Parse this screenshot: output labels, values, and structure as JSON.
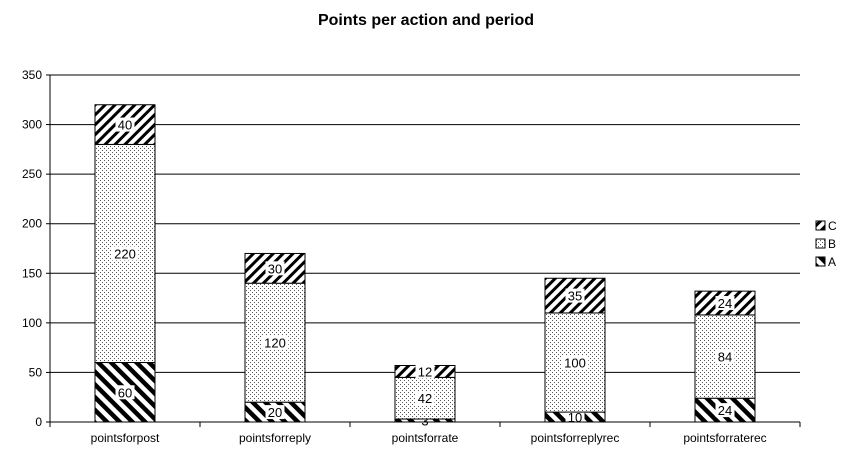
{
  "chart_data": {
    "type": "bar",
    "stacked": true,
    "title": "Points per action and period",
    "xlabel": "",
    "ylabel": "",
    "ylim": [
      0,
      350
    ],
    "yticks": [
      0,
      50,
      100,
      150,
      200,
      250,
      300,
      350
    ],
    "grid": true,
    "legend_position": "right",
    "categories": [
      "pointsforpost",
      "pointsforreply",
      "pointsforrate",
      "pointsforreplyrec",
      "pointsforraterec"
    ],
    "series": [
      {
        "name": "A",
        "values": [
          60,
          20,
          3,
          10,
          24
        ],
        "pattern": "hatch-backslash"
      },
      {
        "name": "B",
        "values": [
          220,
          120,
          42,
          100,
          84
        ],
        "pattern": "dots"
      },
      {
        "name": "C",
        "values": [
          40,
          30,
          12,
          35,
          24
        ],
        "pattern": "hatch-slash"
      }
    ],
    "legend_order": [
      "C",
      "B",
      "A"
    ]
  }
}
